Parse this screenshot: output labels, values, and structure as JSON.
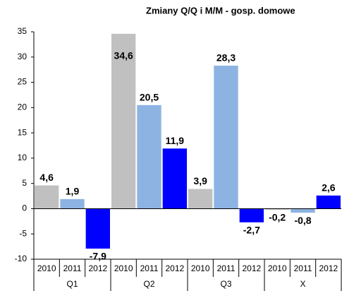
{
  "chart_data": {
    "type": "bar",
    "title": "Zmiany Q/Q i M/M - gosp. domowe",
    "categories": [
      "Q1",
      "Q2",
      "Q3",
      "X"
    ],
    "series": [
      {
        "name": "2010",
        "color": "#c0c0c0",
        "values": [
          4.6,
          34.6,
          3.9,
          -0.2
        ],
        "value_labels": [
          "4,6",
          "34,6",
          "3,9",
          "-0,2"
        ]
      },
      {
        "name": "2011",
        "color": "#8db3e2",
        "values": [
          1.9,
          20.5,
          28.3,
          -0.8
        ],
        "value_labels": [
          "1,9",
          "20,5",
          "28,3",
          "-0,8"
        ]
      },
      {
        "name": "2012",
        "color": "#0000ff",
        "values": [
          -7.9,
          11.9,
          -2.7,
          2.6
        ],
        "value_labels": [
          "-7,9",
          "11,9",
          "-2,7",
          "2,6"
        ]
      }
    ],
    "ylim": [
      -10,
      35
    ],
    "yticks": [
      -10,
      -5,
      0,
      5,
      10,
      15,
      20,
      25,
      30,
      35
    ],
    "grid": false
  }
}
